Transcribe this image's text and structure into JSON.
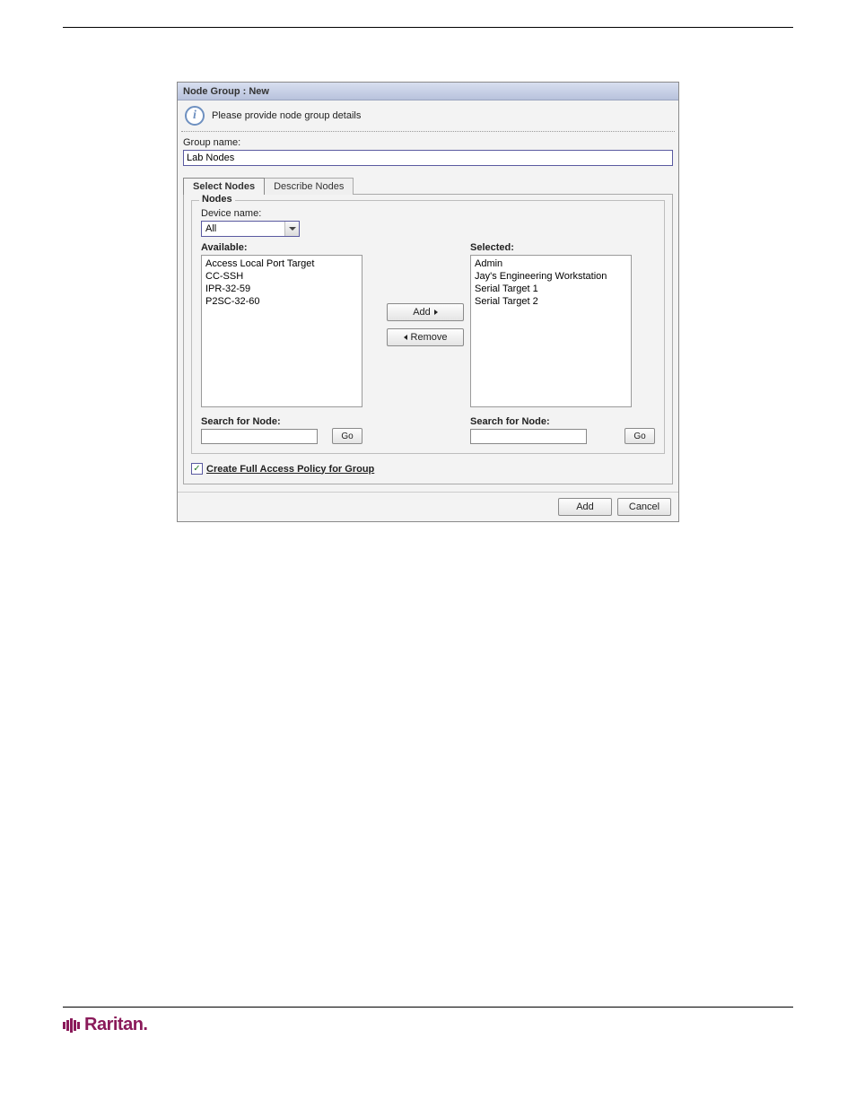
{
  "dialog": {
    "title": "Node Group : New",
    "info_message": "Please provide node group details",
    "group_name_label": "Group name:",
    "group_name_value": "Lab Nodes",
    "tabs": {
      "select_nodes": "Select Nodes",
      "describe_nodes": "Describe Nodes"
    },
    "fieldset_legend": "Nodes",
    "device_name_label": "Device name:",
    "device_name_value": "All",
    "available_label": "Available:",
    "selected_label": "Selected:",
    "available_items": [
      "Access Local Port Target",
      "CC-SSH",
      "IPR-32-59",
      "P2SC-32-60"
    ],
    "selected_items": [
      "Admin",
      "Jay's Engineering Workstation",
      "Serial Target 1",
      "Serial Target 2"
    ],
    "add_btn": "Add",
    "remove_btn": "Remove",
    "search_label": "Search for Node:",
    "go_btn": "Go",
    "policy_label": "Create Full Access Policy for Group",
    "policy_checked": true,
    "footer_add": "Add",
    "footer_cancel": "Cancel"
  },
  "brand": "Raritan",
  "colors": {
    "dialog_bg": "#f3f3f3",
    "title_grad_top": "#d8dff0",
    "title_grad_bottom": "#b8c2dc",
    "input_border": "#5a5aa0",
    "brand_color": "#8a1a5a"
  }
}
